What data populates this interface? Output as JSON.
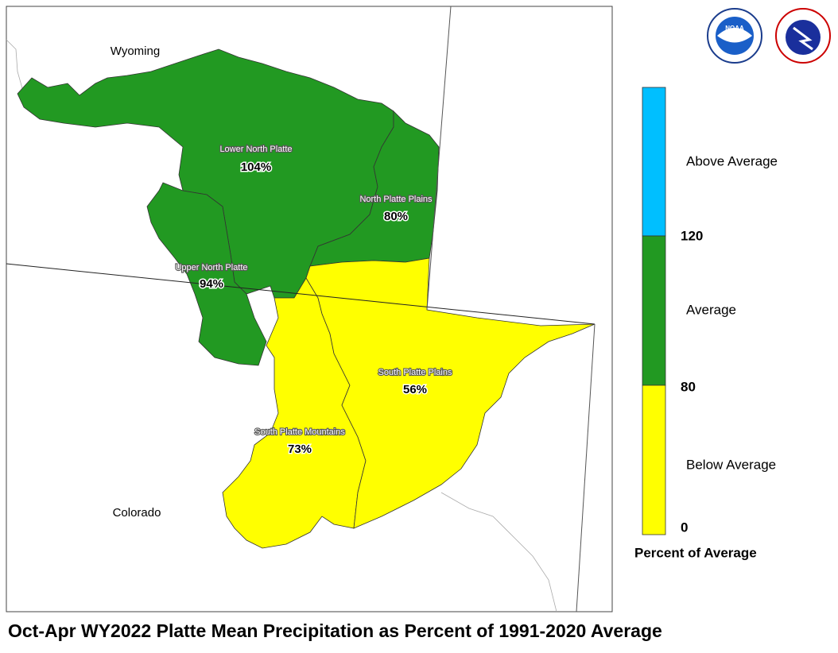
{
  "title": "Oct-Apr WY2022 Platte Mean Precipitation as Percent of 1991-2020 Average",
  "states": [
    "Wyoming",
    "Colorado"
  ],
  "basins": [
    {
      "name": "Lower North Platte",
      "percent": "104%"
    },
    {
      "name": "North Platte Plains",
      "percent": "80%"
    },
    {
      "name": "Upper North Platte",
      "percent": "94%"
    },
    {
      "name": "South Platte Plains",
      "percent": "56%"
    },
    {
      "name": "South Platte Mountains",
      "percent": "73%"
    }
  ],
  "legend": {
    "title": "Percent of Average",
    "classes": [
      "Above Average",
      "Average",
      "Below Average"
    ],
    "breaks": [
      "120",
      "80",
      "0"
    ]
  },
  "logos": [
    "NOAA",
    "NATIONAL WEATHER SERVICE"
  ]
}
